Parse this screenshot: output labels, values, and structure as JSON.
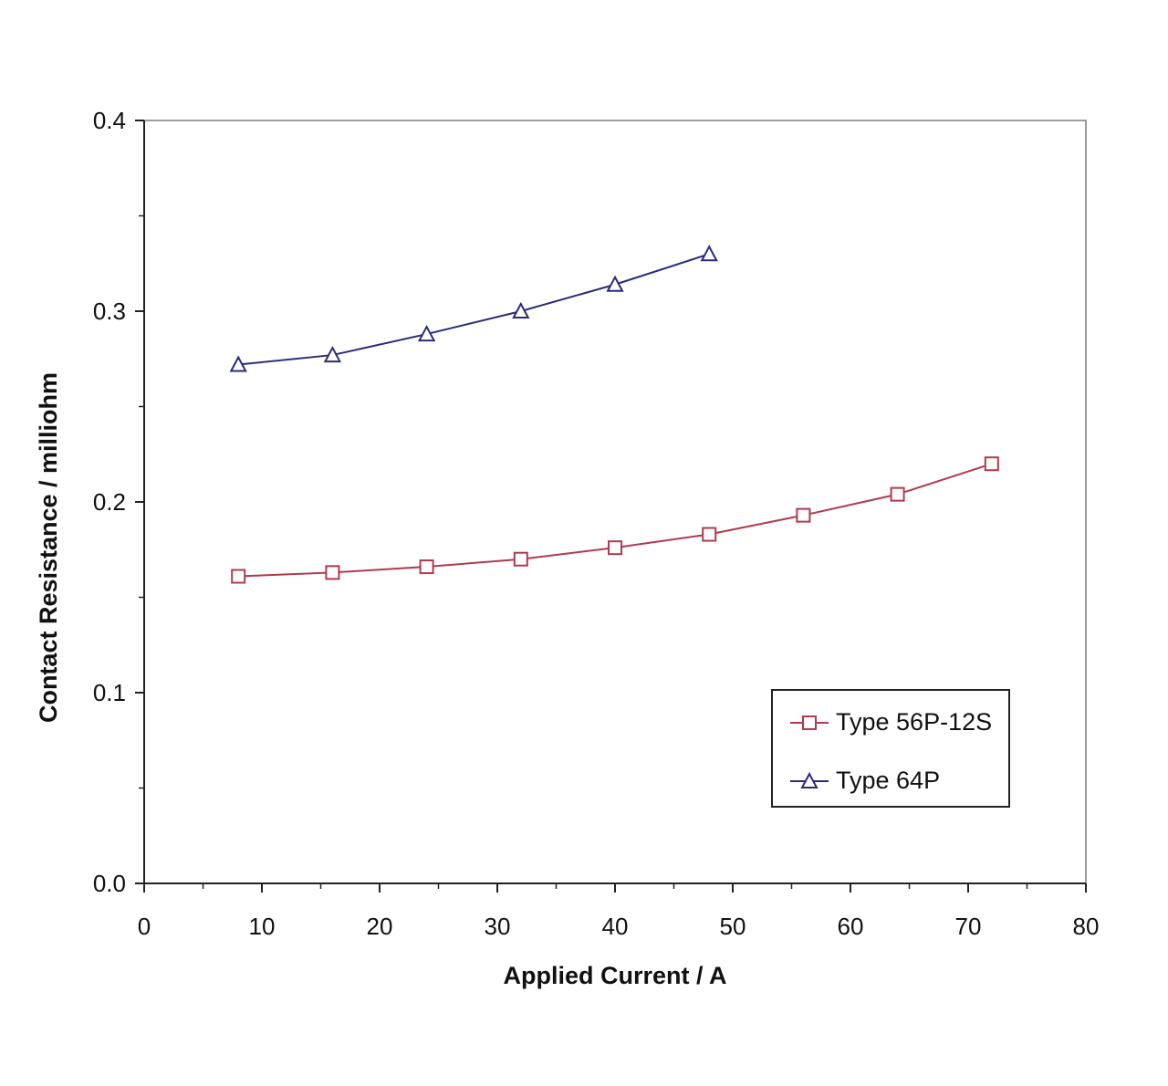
{
  "chart_data": {
    "type": "line",
    "title": "",
    "xlabel": "Applied Current / A",
    "ylabel": "Contact Resistance / milliohm",
    "xlim": [
      0,
      80
    ],
    "ylim": [
      0.0,
      0.4
    ],
    "x_ticks": [
      0,
      10,
      20,
      30,
      40,
      50,
      60,
      70,
      80
    ],
    "x_tick_labels": [
      "0",
      "10",
      "20",
      "30",
      "40",
      "50",
      "60",
      "70",
      "80"
    ],
    "x_minor_ticks": [
      5,
      15,
      25,
      35,
      45,
      55,
      65,
      75
    ],
    "y_ticks": [
      0.0,
      0.1,
      0.2,
      0.3,
      0.4
    ],
    "y_tick_labels": [
      "0.0",
      "0.1",
      "0.2",
      "0.3",
      "0.4"
    ],
    "y_minor_ticks": [
      0.05,
      0.15,
      0.25,
      0.35
    ],
    "grid": false,
    "legend_position": "bottom-right",
    "series": [
      {
        "name": "Type 56P-12S",
        "marker": "square",
        "color": "#b03a4e",
        "x": [
          8,
          16,
          24,
          32,
          40,
          48,
          56,
          64,
          72
        ],
        "values": [
          0.161,
          0.163,
          0.166,
          0.17,
          0.176,
          0.183,
          0.193,
          0.204,
          0.22
        ]
      },
      {
        "name": "Type 64P",
        "marker": "triangle",
        "color": "#2b2b7a",
        "x": [
          8,
          16,
          24,
          32,
          40,
          48
        ],
        "values": [
          0.272,
          0.277,
          0.288,
          0.3,
          0.314,
          0.33
        ]
      }
    ]
  }
}
